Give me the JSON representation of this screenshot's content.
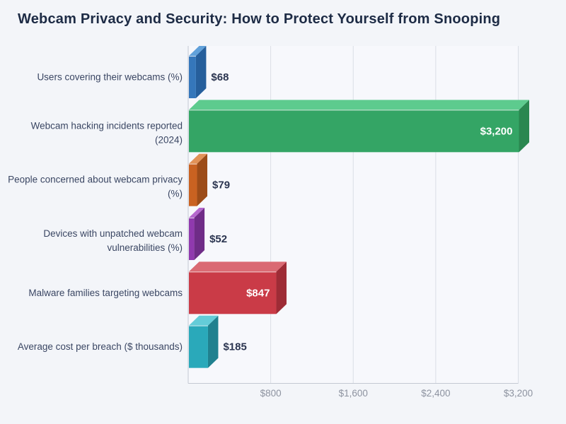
{
  "title": "Webcam Privacy and Security: How to Protect Yourself from Snooping",
  "colors": {
    "page_background": "#f3f5f9",
    "plot_background": "#f7f8fc",
    "gridline": "#dadee6",
    "axis_line": "#c3c8d2",
    "title_text": "#1d2b45",
    "category_label_text": "#3a4663",
    "value_label_outside_text": "#2b3550",
    "value_label_inside_text": "#ffffff",
    "tick_label_text": "#8d93a0",
    "bar_edge_highlight": "rgba(255,255,255,0.75)"
  },
  "chart_data": {
    "type": "bar",
    "orientation": "horizontal",
    "title": "Webcam Privacy and Security: How to Protect Yourself from Snooping",
    "categories": [
      "Users covering their webcams (%)",
      "Webcam hacking incidents reported (2024)",
      "People concerned about webcam privacy (%)",
      "Devices with unpatched webcam vulnerabilities (%)",
      "Malware families targeting webcams",
      "Average cost per breach ($ thousands)"
    ],
    "category_label_lines": [
      [
        "Users covering their webcams (%)"
      ],
      [
        "Webcam hacking incidents reported",
        "(2024)"
      ],
      [
        "People concerned about webcam privacy",
        "(%)"
      ],
      [
        "Devices with unpatched webcam",
        "vulnerabilities (%)"
      ],
      [
        "Malware families targeting webcams"
      ],
      [
        "Average cost per breach ($ thousands)"
      ]
    ],
    "values": [
      68,
      3200,
      79,
      52,
      847,
      185
    ],
    "value_labels": [
      "$68",
      "$3,200",
      "$79",
      "$52",
      "$847",
      "$185"
    ],
    "value_label_placement": [
      "outside",
      "inside",
      "outside",
      "outside",
      "inside",
      "outside"
    ],
    "bar_colors": [
      {
        "name": "blue",
        "front": "#3577bb",
        "top": "#61a1da",
        "side": "#265f9c"
      },
      {
        "name": "green",
        "front": "#34a565",
        "top": "#5dcb8e",
        "side": "#2a8750"
      },
      {
        "name": "orange",
        "front": "#c96221",
        "top": "#e29257",
        "side": "#9c4c18"
      },
      {
        "name": "purple",
        "front": "#9039ae",
        "top": "#b568cd",
        "side": "#6f2c87"
      },
      {
        "name": "red",
        "front": "#ca3b47",
        "top": "#da6a73",
        "side": "#9e2c36"
      },
      {
        "name": "teal",
        "front": "#2aa9ba",
        "top": "#64ccd8",
        "side": "#20818f"
      }
    ],
    "x_axis": {
      "min": 0,
      "max": 3200,
      "ticks": [
        {
          "value": 800,
          "label": "$800"
        },
        {
          "value": 1600,
          "label": "$1,600"
        },
        {
          "value": 2400,
          "label": "$2,400"
        },
        {
          "value": 3200,
          "label": "$3,200"
        }
      ]
    },
    "grid": "vertical",
    "legend": "none",
    "style": "pseudo-3d-bars"
  }
}
